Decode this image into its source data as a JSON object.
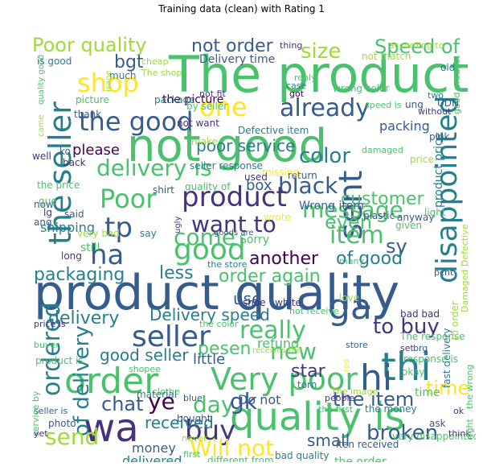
{
  "title": "Training data (clean) with Rating 1",
  "palette": [
    "#440154",
    "#46327e",
    "#365c8d",
    "#277f8e",
    "#1fa187",
    "#4ac16d",
    "#a0da39",
    "#fde725"
  ],
  "words": [
    {
      "text": "The product",
      "color": "#4ac16d"
    },
    {
      "text": "not good",
      "color": "#4ac16d"
    },
    {
      "text": "product quality",
      "color": "#365c8d"
    },
    {
      "text": "quality is",
      "color": "#4ac16d"
    },
    {
      "text": "order",
      "color": "#4ac16d"
    },
    {
      "text": "Very poor",
      "color": "#4ac16d"
    },
    {
      "text": "wa",
      "color": "#46327e"
    },
    {
      "text": "thi",
      "color": "#277f8e"
    },
    {
      "text": "hi",
      "color": "#365c8d"
    },
    {
      "text": "the seller",
      "color": "#277f8e"
    },
    {
      "text": "disappointed",
      "color": "#277f8e"
    },
    {
      "text": "sent",
      "color": "#365c8d"
    },
    {
      "text": "Poor quality",
      "color": "#a0da39"
    },
    {
      "text": "Speed of",
      "color": "#4ac16d"
    },
    {
      "text": "shop",
      "color": "#fde725"
    },
    {
      "text": "one",
      "color": "#fde725"
    },
    {
      "text": "the good",
      "color": "#365c8d"
    },
    {
      "text": "already",
      "color": "#365c8d"
    },
    {
      "text": "delivery is",
      "color": "#4ac16d"
    },
    {
      "text": "black",
      "color": "#365c8d"
    },
    {
      "text": "color",
      "color": "#277f8e"
    },
    {
      "text": "Poor",
      "color": "#4ac16d"
    },
    {
      "text": "product",
      "color": "#46327e"
    },
    {
      "text": "message",
      "color": "#4ac16d"
    },
    {
      "text": "tp",
      "color": "#365c8d"
    },
    {
      "text": "want to",
      "color": "#46327e"
    },
    {
      "text": "item",
      "color": "#4ac16d"
    },
    {
      "text": "ha",
      "color": "#365c8d"
    },
    {
      "text": "good",
      "color": "#4ac16d"
    },
    {
      "text": "seller",
      "color": "#365c8d"
    },
    {
      "text": "ga",
      "color": "#365c8d"
    },
    {
      "text": "really",
      "color": "#4ac16d"
    },
    {
      "text": "ordered",
      "color": "#277f8e"
    },
    {
      "text": "of delivery",
      "color": "#277f8e"
    },
    {
      "text": "to buy",
      "color": "#46327e"
    },
    {
      "text": "new",
      "color": "#4ac16d"
    },
    {
      "text": "broken",
      "color": "#365c8d"
    },
    {
      "text": "buy",
      "color": "#46327e"
    },
    {
      "text": "send",
      "color": "#a0da39"
    },
    {
      "text": "Will not",
      "color": "#fde725"
    },
    {
      "text": "day",
      "color": "#4ac16d"
    },
    {
      "text": "gk",
      "color": "#365c8d"
    },
    {
      "text": "chat",
      "color": "#365c8d"
    },
    {
      "text": "ye",
      "color": "#440154"
    },
    {
      "text": "the item",
      "color": "#365c8d"
    },
    {
      "text": "time",
      "color": "#fde725"
    },
    {
      "text": "size",
      "color": "#a0da39"
    },
    {
      "text": "not order",
      "color": "#365c8d"
    },
    {
      "text": "bgt",
      "color": "#365c8d"
    },
    {
      "text": "customer",
      "color": "#4ac16d"
    },
    {
      "text": "even",
      "color": "#4ac16d"
    },
    {
      "text": "sy",
      "color": "#365c8d"
    },
    {
      "text": "of good",
      "color": "#277f8e"
    },
    {
      "text": "another",
      "color": "#440154"
    },
    {
      "text": "order again",
      "color": "#4ac16d"
    },
    {
      "text": "packaging",
      "color": "#277f8e"
    },
    {
      "text": "less",
      "color": "#277f8e"
    },
    {
      "text": "come",
      "color": "#4ac16d"
    },
    {
      "text": "delivery",
      "color": "#277f8e"
    },
    {
      "text": "Delivery speed",
      "color": "#277f8e"
    },
    {
      "text": "good seller",
      "color": "#277f8e"
    },
    {
      "text": "pesen",
      "color": "#4ac16d"
    },
    {
      "text": "star",
      "color": "#46327e"
    },
    {
      "text": "received",
      "color": "#277f8e"
    },
    {
      "text": "small",
      "color": "#365c8d"
    },
    {
      "text": "poor service",
      "color": "#277f8e"
    },
    {
      "text": "please",
      "color": "#440154"
    },
    {
      "text": "use",
      "color": "#365c8d"
    },
    {
      "text": "box",
      "color": "#365c8d"
    },
    {
      "text": "Wrong item",
      "color": "#365c8d"
    },
    {
      "text": "the picture",
      "color": "#440154"
    },
    {
      "text": "packing",
      "color": "#365c8d"
    },
    {
      "text": "shipping",
      "color": "#277f8e"
    },
    {
      "text": "Sorry",
      "color": "#4ac16d"
    },
    {
      "text": "little",
      "color": "#365c8d"
    },
    {
      "text": "Do not",
      "color": "#365c8d"
    },
    {
      "text": "money",
      "color": "#365c8d"
    },
    {
      "text": "delivered",
      "color": "#277f8e"
    },
    {
      "text": "refund",
      "color": "#4ac16d"
    },
    {
      "text": "Delivery time",
      "color": "#365c8d"
    },
    {
      "text": "Defective item",
      "color": "#277f8e"
    },
    {
      "text": "wrong color",
      "color": "#4ac16d"
    },
    {
      "text": "still",
      "color": "#4ac16d"
    },
    {
      "text": "the order",
      "color": "#4ac16d"
    },
    {
      "text": "very disappointed",
      "color": "#4ac16d"
    },
    {
      "text": "the money",
      "color": "#277f8e"
    },
    {
      "text": "bad quality",
      "color": "#277f8e"
    },
    {
      "text": "different from",
      "color": "#4ac16d"
    },
    {
      "text": "iten received",
      "color": "#365c8d"
    },
    {
      "text": "is good",
      "color": "#277f8e"
    },
    {
      "text": "The shop",
      "color": "#a0da39"
    },
    {
      "text": "much",
      "color": "#277f8e"
    },
    {
      "text": "cheap",
      "color": "#a0da39"
    },
    {
      "text": "thing",
      "color": "#46327e"
    },
    {
      "text": "according to",
      "color": "#a0da39"
    },
    {
      "text": "not match",
      "color": "#a0da39"
    },
    {
      "text": "old",
      "color": "#277f8e"
    },
    {
      "text": "good product",
      "color": "#4ac16d"
    },
    {
      "text": "case",
      "color": "#277f8e"
    },
    {
      "text": "reply",
      "color": "#4ac16d"
    },
    {
      "text": "two",
      "color": "#277f8e"
    },
    {
      "text": "UDH",
      "color": "#365c8d"
    },
    {
      "text": "without",
      "color": "#46327e"
    },
    {
      "text": "package",
      "color": "#277f8e"
    },
    {
      "text": "picture",
      "color": "#4ac16d"
    },
    {
      "text": "by seller",
      "color": "#4ac16d"
    },
    {
      "text": "not fit",
      "color": "#46327e"
    },
    {
      "text": "got",
      "color": "#440154"
    },
    {
      "text": "thank",
      "color": "#365c8d"
    },
    {
      "text": "not want",
      "color": "#46327e"
    },
    {
      "text": "make",
      "color": "#a0da39"
    },
    {
      "text": "speed is",
      "color": "#4ac16d"
    },
    {
      "text": "pink",
      "color": "#365c8d"
    },
    {
      "text": "damaged",
      "color": "#4ac16d"
    },
    {
      "text": "product price",
      "color": "#277f8e"
    },
    {
      "text": "price",
      "color": "#a0da39"
    },
    {
      "text": "seller response",
      "color": "#277f8e"
    },
    {
      "text": "return",
      "color": "#365c8d"
    },
    {
      "text": "missing",
      "color": "#fde725"
    },
    {
      "text": "quality of",
      "color": "#4ac16d"
    },
    {
      "text": "the price",
      "color": "#4ac16d"
    },
    {
      "text": "shirt",
      "color": "#365c8d"
    },
    {
      "text": "used",
      "color": "#46327e"
    },
    {
      "text": "wrote",
      "color": "#fde725"
    },
    {
      "text": "plastic",
      "color": "#365c8d"
    },
    {
      "text": "anyway",
      "color": "#365c8d"
    },
    {
      "text": "given",
      "color": "#4ac16d"
    },
    {
      "text": "light",
      "color": "#4ac16d"
    },
    {
      "text": "very bad",
      "color": "#a0da39"
    },
    {
      "text": "say",
      "color": "#277f8e"
    },
    {
      "text": "goods are",
      "color": "#365c8d"
    },
    {
      "text": "long",
      "color": "#46327e"
    },
    {
      "text": "the store",
      "color": "#277f8e"
    },
    {
      "text": "many",
      "color": "#4ac16d"
    },
    {
      "text": "pcnt",
      "color": "#365c8d"
    },
    {
      "text": "Damaged Defective",
      "color": "#a0da39"
    },
    {
      "text": "shoe",
      "color": "#46327e"
    },
    {
      "text": "white",
      "color": "#46327e"
    },
    {
      "text": "love",
      "color": "#a0da39"
    },
    {
      "text": "bad bad",
      "color": "#46327e"
    },
    {
      "text": "not receive",
      "color": "#4ac16d"
    },
    {
      "text": "price is",
      "color": "#46327e"
    },
    {
      "text": "the color",
      "color": "#4ac16d"
    },
    {
      "text": "The response",
      "color": "#4ac16d"
    },
    {
      "text": "to order",
      "color": "#a0da39"
    },
    {
      "text": "fast delivery",
      "color": "#277f8e"
    },
    {
      "text": "buyer",
      "color": "#4ac16d"
    },
    {
      "text": "product is",
      "color": "#4ac16d"
    },
    {
      "text": "receives the",
      "color": "#a0da39"
    },
    {
      "text": "store",
      "color": "#365c8d"
    },
    {
      "text": "set",
      "color": "#46327e"
    },
    {
      "text": "brg",
      "color": "#365c8d"
    },
    {
      "text": "response is",
      "color": "#4ac16d"
    },
    {
      "text": "red",
      "color": "#fde725"
    },
    {
      "text": "shopee",
      "color": "#4ac16d"
    },
    {
      "text": "torn",
      "color": "#277f8e"
    },
    {
      "text": "The image",
      "color": "#a0da39"
    },
    {
      "text": "okay",
      "color": "#4ac16d"
    },
    {
      "text": "people",
      "color": "#46327e"
    },
    {
      "text": "the first",
      "color": "#4ac16d"
    },
    {
      "text": "clothe",
      "color": "#4ac16d"
    },
    {
      "text": "blue",
      "color": "#365c8d"
    },
    {
      "text": "material",
      "color": "#277f8e"
    },
    {
      "text": "seller is",
      "color": "#365c8d"
    },
    {
      "text": "service by",
      "color": "#4ac16d"
    },
    {
      "text": "photo",
      "color": "#365c8d"
    },
    {
      "text": "yet",
      "color": "#46327e"
    },
    {
      "text": "not original",
      "color": "#4ac16d"
    },
    {
      "text": "first",
      "color": "#4ac16d"
    },
    {
      "text": "bought",
      "color": "#365c8d"
    },
    {
      "text": "never",
      "color": "#a0da39"
    },
    {
      "text": "ask",
      "color": "#365c8d"
    },
    {
      "text": "ok",
      "color": "#46327e"
    },
    {
      "text": "think",
      "color": "#46327e"
    },
    {
      "text": "right",
      "color": "#4ac16d"
    },
    {
      "text": "the wrong",
      "color": "#4ac16d"
    },
    {
      "text": "quality good",
      "color": "#4ac16d"
    },
    {
      "text": "came",
      "color": "#a0da39"
    },
    {
      "text": "well",
      "color": "#46327e"
    },
    {
      "text": "ko",
      "color": "#365c8d"
    },
    {
      "text": "back",
      "color": "#46327e"
    },
    {
      "text": "now",
      "color": "#365c8d"
    },
    {
      "text": "said",
      "color": "#365c8d"
    },
    {
      "text": "ugly",
      "color": "#46327e"
    },
    {
      "text": "lg",
      "color": "#46327e"
    },
    {
      "text": "ang",
      "color": "#365c8d"
    },
    {
      "text": "gue",
      "color": "#4ac16d"
    },
    {
      "text": "isage",
      "color": "#a0da39"
    },
    {
      "text": "ung",
      "color": "#365c8d"
    },
    {
      "text": "time",
      "color": "#4ac16d"
    }
  ]
}
